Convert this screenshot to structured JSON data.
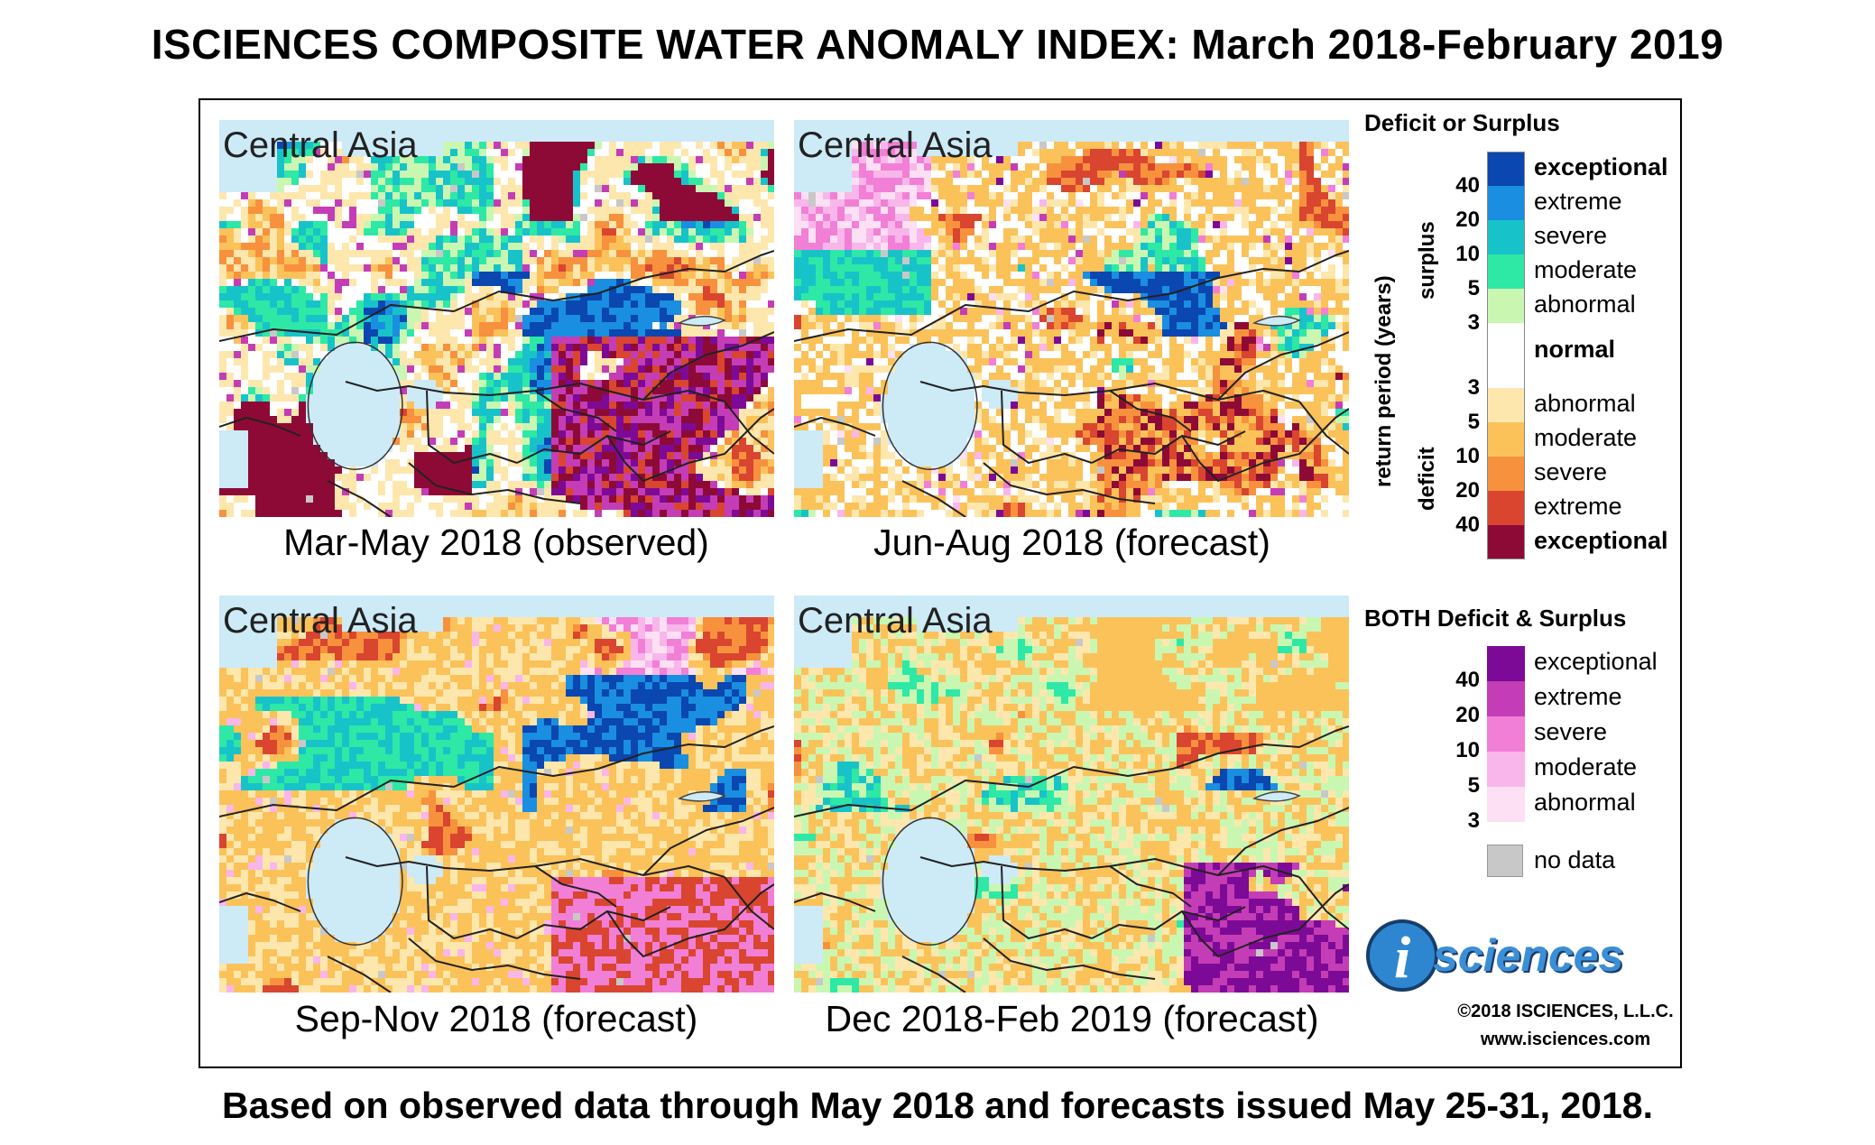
{
  "title": "ISCIENCES COMPOSITE WATER ANOMALY INDEX: March 2018-February 2019",
  "footer": "Based on observed data through May 2018 and forecasts issued May 25-31, 2018.",
  "panels": [
    {
      "region": "Central Asia",
      "caption": "Mar-May 2018 (observed)",
      "scenario": "observed"
    },
    {
      "region": "Central Asia",
      "caption": "Jun-Aug 2018 (forecast)",
      "scenario": "summer"
    },
    {
      "region": "Central Asia",
      "caption": "Sep-Nov 2018 (forecast)",
      "scenario": "autumn"
    },
    {
      "region": "Central Asia",
      "caption": "Dec 2018-Feb 2019 (forecast)",
      "scenario": "winter"
    }
  ],
  "legend": {
    "title": "Deficit or Surplus",
    "axis_label": "return period (years)",
    "surplus_label": "surplus",
    "deficit_label": "deficit",
    "surplus": [
      {
        "label": "exceptional",
        "color": "#0a47b0"
      },
      {
        "label": "extreme",
        "color": "#1a8ee0"
      },
      {
        "label": "severe",
        "color": "#17c3c9"
      },
      {
        "label": "moderate",
        "color": "#2ee8a6"
      },
      {
        "label": "abnormal",
        "color": "#c9f7b2"
      }
    ],
    "surplus_ticks": [
      "40",
      "20",
      "10",
      "5",
      "3"
    ],
    "normal": {
      "label": "normal",
      "color": "#ffffff"
    },
    "deficit": [
      {
        "label": "abnormal",
        "color": "#fde7ad"
      },
      {
        "label": "moderate",
        "color": "#fbc25a"
      },
      {
        "label": "severe",
        "color": "#f7913d"
      },
      {
        "label": "extreme",
        "color": "#d9452f"
      },
      {
        "label": "exceptional",
        "color": "#8e0a36"
      }
    ],
    "deficit_ticks": [
      "3",
      "5",
      "10",
      "20",
      "40"
    ],
    "both_title": "BOTH Deficit & Surplus",
    "both": [
      {
        "label": "exceptional",
        "color": "#7d0a96"
      },
      {
        "label": "extreme",
        "color": "#c43db6"
      },
      {
        "label": "severe",
        "color": "#f27fd6"
      },
      {
        "label": "moderate",
        "color": "#f9b6ea"
      },
      {
        "label": "abnormal",
        "color": "#fde0f3"
      }
    ],
    "both_ticks": [
      "40",
      "20",
      "10",
      "5",
      "3"
    ],
    "no_data": {
      "label": "no data",
      "color": "#c8c8c8"
    }
  },
  "branding": {
    "logo_text": "sciences",
    "copyright": "©2018 ISCIENCES, L.L.C.",
    "website": "www.isciences.com"
  },
  "colors": {
    "water": "#cdeaf7",
    "border": "#222222"
  }
}
